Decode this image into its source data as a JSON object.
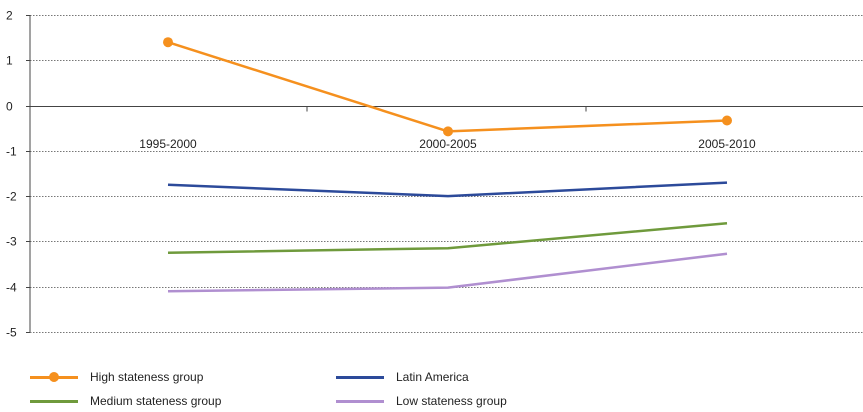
{
  "chart_data": {
    "type": "line",
    "categories": [
      "1995-2000",
      "2000-2005",
      "2005-2010"
    ],
    "y_ticks": [
      "2",
      "1",
      "0",
      "-1",
      "-2",
      "-3",
      "-4",
      "-5"
    ],
    "ylim": [
      -5,
      2
    ],
    "grid": true,
    "legend_position": "bottom",
    "series": [
      {
        "name": "High stateness group",
        "values": [
          1.4,
          -0.57,
          -0.33
        ],
        "color": "#f5901e",
        "markers": true
      },
      {
        "name": "Latin America",
        "values": [
          -1.75,
          -2.0,
          -1.7
        ],
        "color": "#2c4a9a",
        "markers": false
      },
      {
        "name": "Medium stateness group",
        "values": [
          -3.25,
          -3.15,
          -2.6
        ],
        "color": "#6f9a3c",
        "markers": false
      },
      {
        "name": "Low stateness group",
        "values": [
          -4.1,
          -4.02,
          -3.27
        ],
        "color": "#b08fd0",
        "markers": false
      }
    ]
  }
}
